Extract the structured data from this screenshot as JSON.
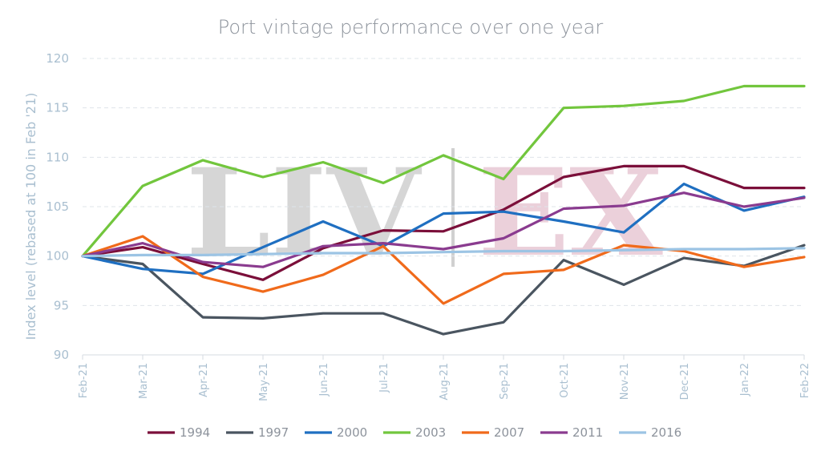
{
  "chart_data": {
    "type": "line",
    "title": "Port vintage performance over one year",
    "ylabel": "Index level (rebased at 100 in Feb '21)",
    "xlabel": "",
    "ylim": [
      90,
      120
    ],
    "yticks": [
      90,
      95,
      100,
      105,
      110,
      115,
      120
    ],
    "grid": true,
    "legend_position": "bottom",
    "watermark": "LIV|EX",
    "x": [
      "Feb-21",
      "Mar-21",
      "Apr-21",
      "May-21",
      "Jun-21",
      "Jul-21",
      "Aug-21",
      "Sep-21",
      "Oct-21",
      "Nov-21",
      "Dec-21",
      "Jan-22",
      "Feb-22"
    ],
    "series": [
      {
        "name": "1994",
        "color": "#7b0f3a",
        "values": [
          100,
          100.9,
          99.2,
          97.6,
          100.8,
          102.6,
          102.5,
          104.7,
          108.0,
          109.1,
          109.1,
          106.9,
          106.9
        ]
      },
      {
        "name": "1997",
        "color": "#4a5560",
        "values": [
          100,
          99.2,
          93.8,
          93.7,
          94.2,
          94.2,
          92.1,
          93.3,
          99.6,
          97.1,
          99.8,
          99.0,
          101.1
        ]
      },
      {
        "name": "2000",
        "color": "#1f6fc1",
        "values": [
          100,
          98.7,
          98.2,
          100.9,
          103.5,
          101.0,
          104.3,
          104.5,
          103.5,
          102.4,
          107.3,
          104.6,
          106.0
        ]
      },
      {
        "name": "2003",
        "color": "#72c63d",
        "values": [
          100,
          107.1,
          109.7,
          108.0,
          109.5,
          107.4,
          110.2,
          107.8,
          115.0,
          115.2,
          115.7,
          117.2,
          117.2
        ]
      },
      {
        "name": "2007",
        "color": "#f06a1b",
        "values": [
          100,
          102.0,
          97.9,
          96.4,
          98.1,
          101.0,
          95.2,
          98.2,
          98.6,
          101.1,
          100.5,
          98.9,
          99.9
        ]
      },
      {
        "name": "2011",
        "color": "#8a3b8f",
        "values": [
          100,
          101.3,
          99.4,
          98.9,
          101.0,
          101.3,
          100.7,
          101.8,
          104.8,
          105.1,
          106.4,
          105.0,
          105.9
        ]
      },
      {
        "name": "2016",
        "color": "#9cc4e4",
        "values": [
          100,
          100.1,
          100.1,
          100.2,
          100.3,
          100.3,
          100.4,
          100.5,
          100.5,
          100.6,
          100.7,
          100.7,
          100.8
        ]
      }
    ]
  }
}
